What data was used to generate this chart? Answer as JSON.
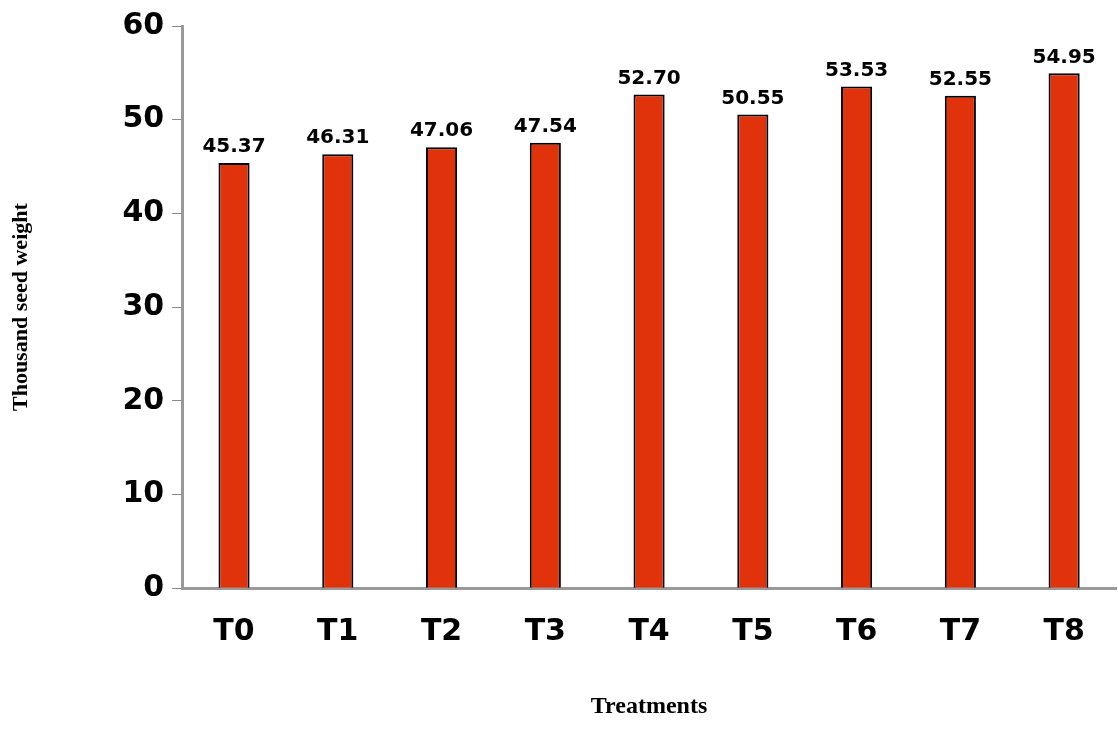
{
  "chart_data": {
    "type": "bar",
    "xlabel": "Treatments",
    "ylabel": "Thousand seed weight",
    "categories": [
      "T0",
      "T1",
      "T2",
      "T3",
      "T4",
      "T5",
      "T6",
      "T7",
      "T8"
    ],
    "values": [
      45.37,
      46.31,
      47.06,
      47.54,
      52.7,
      50.55,
      53.53,
      52.55,
      54.95
    ],
    "value_labels": [
      "45.37",
      "46.31",
      "47.06",
      "47.54",
      "52.70",
      "50.55",
      "53.53",
      "52.55",
      "54.95"
    ],
    "color": "#e0330c",
    "ylim": [
      0,
      60
    ],
    "yticks": [
      0,
      10,
      20,
      30,
      40,
      50,
      60
    ],
    "grid": false,
    "legend": false
  }
}
